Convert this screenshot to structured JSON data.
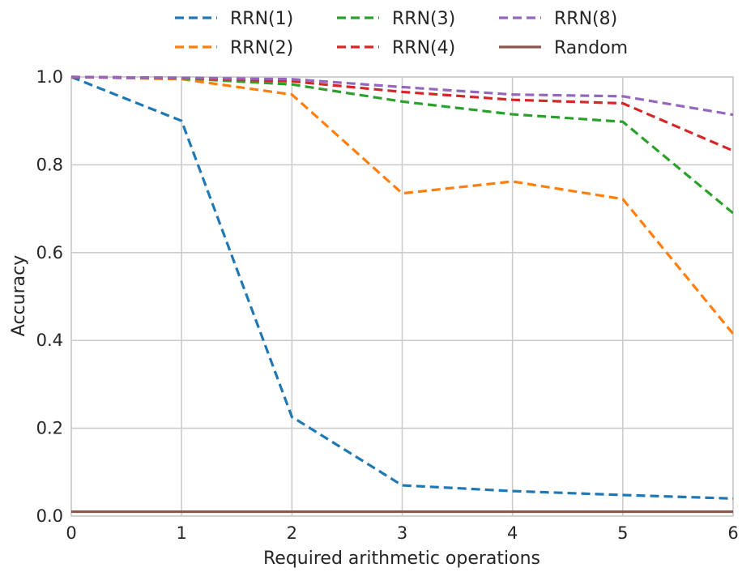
{
  "chart_data": {
    "type": "line",
    "title": "",
    "xlabel": "Required arithmetic operations",
    "ylabel": "Accuracy",
    "xlim": [
      0,
      6
    ],
    "ylim": [
      0,
      1
    ],
    "xticks": [
      "0",
      "1",
      "2",
      "3",
      "4",
      "5",
      "6"
    ],
    "yticks": [
      "0.0",
      "0.2",
      "0.4",
      "0.6",
      "0.8",
      "1.0"
    ],
    "grid": true,
    "legend_position": "top-center",
    "x": [
      0,
      1,
      2,
      3,
      4,
      5,
      6
    ],
    "series": [
      {
        "name": "RRN(1)",
        "color": "#1f77b4",
        "style": "dashed",
        "values": [
          1.0,
          0.9,
          0.226,
          0.07,
          0.057,
          0.048,
          0.04
        ]
      },
      {
        "name": "RRN(2)",
        "color": "#ff7f0e",
        "style": "dashed",
        "values": [
          1.0,
          0.995,
          0.96,
          0.735,
          0.762,
          0.722,
          0.415
        ]
      },
      {
        "name": "RRN(3)",
        "color": "#2ca02c",
        "style": "dashed",
        "values": [
          1.0,
          0.997,
          0.983,
          0.944,
          0.915,
          0.898,
          0.69
        ]
      },
      {
        "name": "RRN(4)",
        "color": "#d62728",
        "style": "dashed",
        "values": [
          1.0,
          0.998,
          0.99,
          0.966,
          0.948,
          0.94,
          0.832
        ]
      },
      {
        "name": "RRN(8)",
        "color": "#9467bd",
        "style": "dashed",
        "values": [
          1.0,
          0.998,
          0.995,
          0.977,
          0.96,
          0.956,
          0.914
        ]
      },
      {
        "name": "Random",
        "color": "#8c564b",
        "style": "solid",
        "values": [
          0.01,
          0.01,
          0.01,
          0.01,
          0.01,
          0.01,
          0.01
        ]
      }
    ]
  }
}
